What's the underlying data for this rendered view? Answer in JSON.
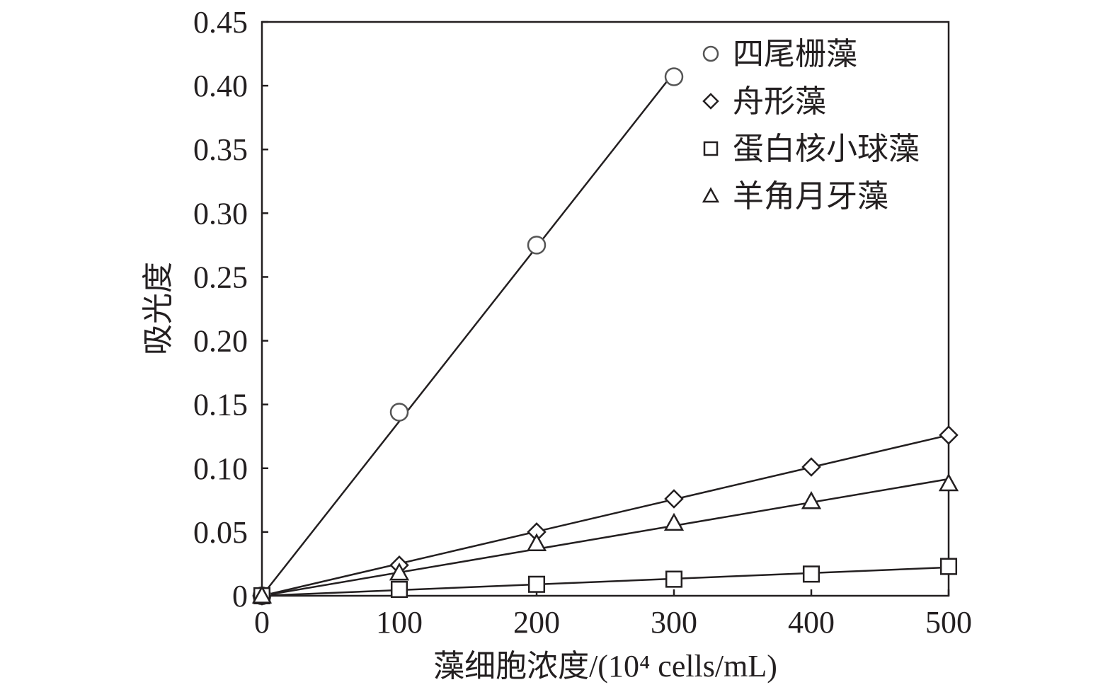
{
  "chart_data": {
    "type": "scatter",
    "xlabel": "藻细胞浓度/(10⁴ cells/mL)",
    "ylabel": "吸光度",
    "xlim": [
      0,
      500
    ],
    "ylim": [
      0,
      0.45
    ],
    "x_ticks": [
      "0",
      "100",
      "200",
      "300",
      "400",
      "500"
    ],
    "y_ticks": [
      "0",
      "0.05",
      "0.10",
      "0.15",
      "0.20",
      "0.25",
      "0.30",
      "0.35",
      "0.40",
      "0.45"
    ],
    "grid": false,
    "legend_position": "top-right",
    "series": [
      {
        "name": "四尾栅藻",
        "marker": "circle",
        "color": "#555555",
        "x": [
          0,
          100,
          200,
          300
        ],
        "y": [
          0,
          0.144,
          0.275,
          0.407
        ],
        "fit_line": true
      },
      {
        "name": "舟形藻",
        "marker": "diamond",
        "color": "#231f20",
        "x": [
          0,
          100,
          200,
          300,
          400,
          500
        ],
        "y": [
          0,
          0.024,
          0.05,
          0.076,
          0.101,
          0.126
        ],
        "fit_line": true
      },
      {
        "name": "蛋白核小球藻",
        "marker": "square",
        "color": "#231f20",
        "x": [
          0,
          100,
          200,
          300,
          400,
          500
        ],
        "y": [
          0,
          0.005,
          0.009,
          0.013,
          0.017,
          0.023
        ],
        "fit_line": true
      },
      {
        "name": "羊角月牙藻",
        "marker": "triangle",
        "color": "#231f20",
        "x": [
          0,
          100,
          200,
          300,
          400,
          500
        ],
        "y": [
          0,
          0.018,
          0.041,
          0.057,
          0.074,
          0.088
        ],
        "fit_line": true
      }
    ]
  }
}
